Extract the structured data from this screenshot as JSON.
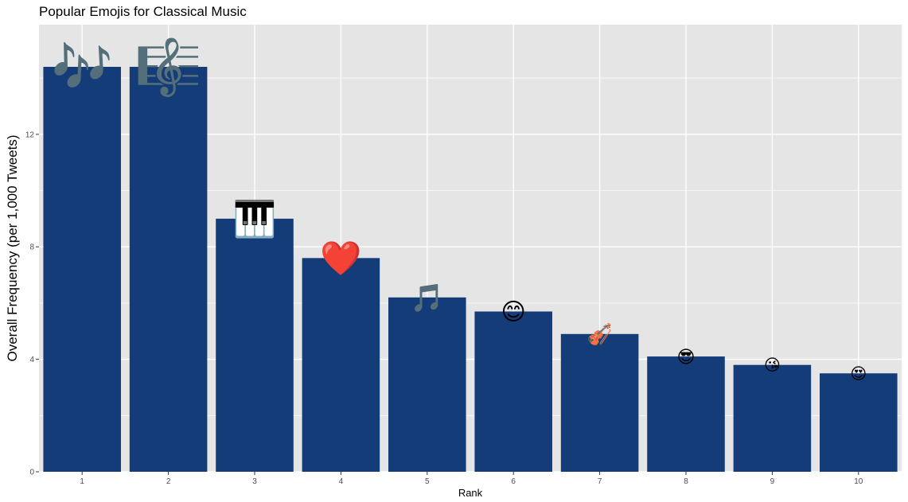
{
  "chart_data": {
    "type": "bar",
    "title": "Popular Emojis for Classical Music",
    "xlabel": "Rank",
    "ylabel": "Overall Frequency (per 1,000 Tweets)",
    "categories": [
      "1",
      "2",
      "3",
      "4",
      "5",
      "6",
      "7",
      "8",
      "9",
      "10"
    ],
    "values": [
      14.4,
      14.4,
      9.0,
      7.6,
      6.2,
      5.7,
      4.9,
      4.1,
      3.8,
      3.5
    ],
    "emojis": [
      "🎶",
      "🎼",
      "🎹",
      "❤️",
      "🎵",
      "😊",
      "🎻",
      "😎",
      "😘",
      "😍"
    ],
    "y_ticks": [
      "0",
      "4",
      "8",
      "12"
    ],
    "ylim": [
      0,
      15.9
    ],
    "grid": true,
    "colors": {
      "bar": "#143c78",
      "panel": "#e5e5e5",
      "grid": "#ffffff"
    }
  }
}
